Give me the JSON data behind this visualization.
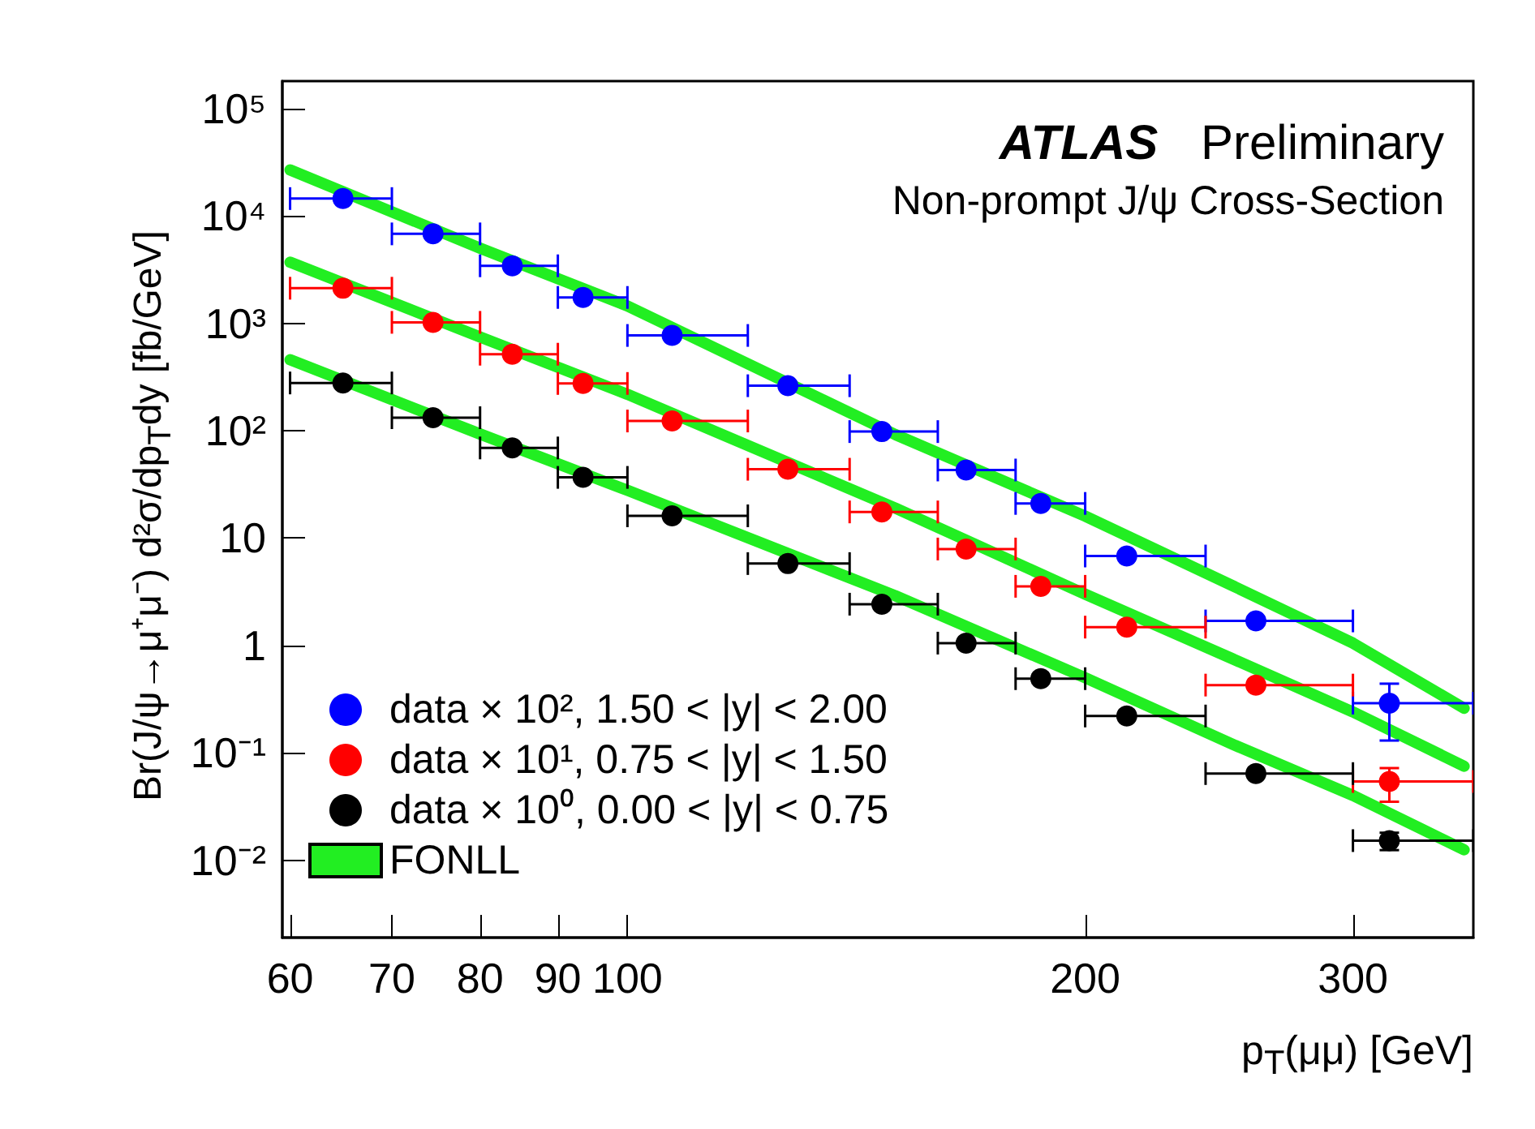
{
  "chart_data": {
    "type": "scatter",
    "title": "ATLAS Preliminary",
    "subtitle": "Non-prompt J/ψ Cross-Section",
    "xlabel": "p$_{T}$(μμ) [GeV]",
    "ylabel": "Br(J/ψ→μ⁺μ⁻) d²σ/dp$_{T}$dy [fb/GeV]",
    "log": "xy",
    "marker": "circle",
    "legend": "bottom left",
    "xlim": [
      59.3,
      360
    ],
    "xticks": [
      60,
      70,
      80,
      90,
      100,
      200,
      300
    ],
    "ylim": [
      0.0019,
      180000
    ],
    "yticks": [
      {
        "value": 100000,
        "label": "10⁵"
      },
      {
        "value": 10000,
        "label": "10⁴"
      },
      {
        "value": 1000,
        "label": "10³"
      },
      {
        "value": 100,
        "label": "10²"
      },
      10,
      1,
      {
        "value": 0.1,
        "label": "10⁻¹"
      },
      {
        "value": 0.01,
        "label": "10⁻²"
      }
    ],
    "series": [
      {
        "name": "data × 10², 1.50 < |y| < 2.00",
        "color": "#0000ff",
        "x": [
          65,
          74.5,
          84,
          93.5,
          107,
          127.5,
          147,
          167,
          187,
          213,
          259,
          317
        ],
        "values": [
          14500,
          6800,
          3430,
          1740,
          770,
          262,
          98,
          43,
          21,
          6.8,
          1.69,
          0.29
        ],
        "xerrors": [
          [
            60,
            70
          ],
          [
            70,
            80
          ],
          [
            80,
            90
          ],
          [
            90,
            100
          ],
          [
            100,
            120
          ],
          [
            120,
            140
          ],
          [
            140,
            160
          ],
          [
            160,
            180
          ],
          [
            180,
            200
          ],
          [
            200,
            240
          ],
          [
            240,
            300
          ],
          [
            300,
            360
          ]
        ],
        "errors": [
          null,
          null,
          null,
          null,
          null,
          null,
          null,
          null,
          null,
          null,
          null,
          [
            0.13,
            0.44
          ]
        ]
      },
      {
        "name": "data × 10¹, 0.75 < |y| < 1.50",
        "color": "#ff0000",
        "x": [
          65,
          74.5,
          84,
          93.5,
          107,
          127.5,
          147,
          167,
          187,
          213,
          259,
          317
        ],
        "values": [
          2120,
          1020,
          515,
          275,
          123,
          43.7,
          17.5,
          7.9,
          3.55,
          1.48,
          0.427,
          0.054
        ],
        "xerrors": [
          [
            60,
            70
          ],
          [
            70,
            80
          ],
          [
            80,
            90
          ],
          [
            90,
            100
          ],
          [
            100,
            120
          ],
          [
            120,
            140
          ],
          [
            140,
            160
          ],
          [
            160,
            180
          ],
          [
            180,
            200
          ],
          [
            200,
            240
          ],
          [
            240,
            300
          ],
          [
            300,
            360
          ]
        ],
        "errors": [
          null,
          null,
          null,
          null,
          null,
          null,
          null,
          null,
          null,
          null,
          null,
          [
            0.035,
            0.072
          ]
        ]
      },
      {
        "name": "data × 10⁰, 0.00 < |y| < 0.75",
        "color": "#000000",
        "x": [
          65,
          74.5,
          84,
          93.5,
          107,
          127.5,
          147,
          167,
          187,
          213,
          259,
          317
        ],
        "values": [
          278,
          132,
          69,
          36.7,
          16.1,
          5.78,
          2.42,
          1.05,
          0.49,
          0.22,
          0.064,
          0.0152
        ],
        "xerrors": [
          [
            60,
            70
          ],
          [
            70,
            80
          ],
          [
            80,
            90
          ],
          [
            90,
            100
          ],
          [
            100,
            120
          ],
          [
            120,
            140
          ],
          [
            140,
            160
          ],
          [
            160,
            180
          ],
          [
            180,
            200
          ],
          [
            200,
            240
          ],
          [
            240,
            300
          ],
          [
            300,
            360
          ]
        ],
        "errors": [
          null,
          null,
          null,
          null,
          null,
          null,
          null,
          null,
          null,
          null,
          null,
          [
            0.0124,
            0.018
          ]
        ]
      },
      {
        "name": "FONLL",
        "type": "line",
        "marker": "none",
        "color": "#22ee22",
        "x": [
          60,
          80,
          100,
          150,
          200,
          250,
          300,
          355
        ],
        "values": [
          26800,
          5000,
          1450,
          92,
          16,
          3.6,
          1.05,
          0.26
        ]
      },
      {
        "type": "line",
        "marker": "none",
        "color": "#22ee22",
        "x": [
          60,
          80,
          100,
          150,
          200,
          250,
          300,
          355
        ],
        "values": [
          3700,
          745,
          218,
          19,
          3.0,
          0.75,
          0.24,
          0.075
        ]
      },
      {
        "type": "line",
        "marker": "none",
        "color": "#22ee22",
        "x": [
          60,
          80,
          100,
          150,
          200,
          250,
          300,
          355
        ],
        "values": [
          457,
          93,
          27.8,
          2.9,
          0.5,
          0.12,
          0.04,
          0.0125
        ]
      }
    ]
  }
}
